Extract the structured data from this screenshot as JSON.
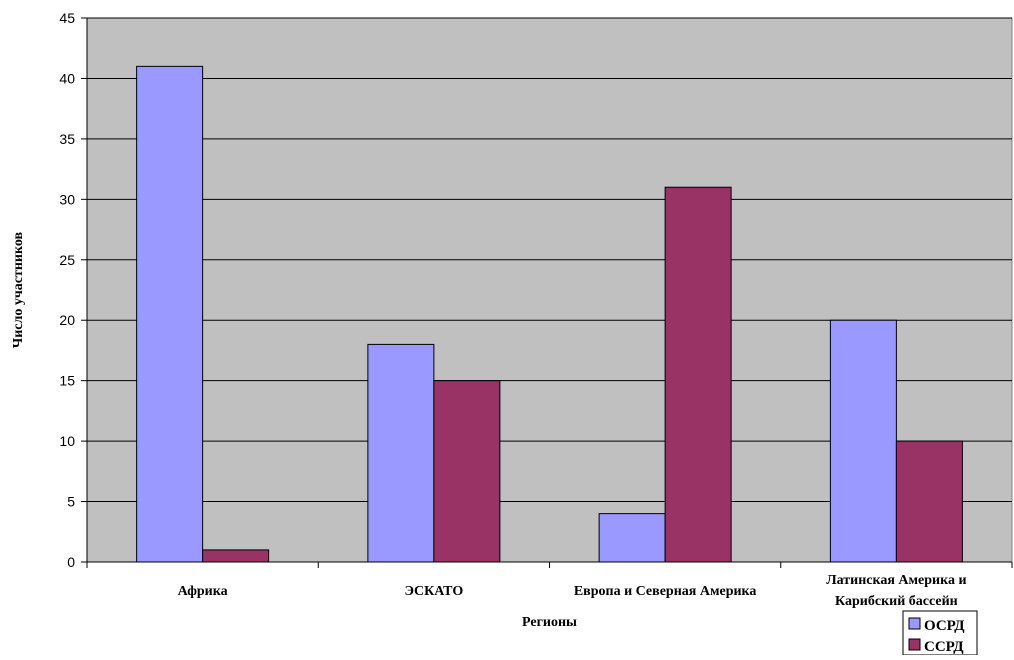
{
  "chart_data": {
    "type": "bar",
    "categories": [
      "Африка",
      "ЭСКАТО",
      "Европа и Северная Америка",
      "Латинская Америка и Карибский бассейн"
    ],
    "category_lines": [
      [
        "Африка"
      ],
      [
        "ЭСКАТО"
      ],
      [
        "Европа и Северная Америка"
      ],
      [
        "Латинская Америка и",
        "Карибский бассейн"
      ]
    ],
    "series": [
      {
        "name": "ОСРД",
        "values": [
          41,
          18,
          4,
          20
        ],
        "color": "#9999ff"
      },
      {
        "name": "ССРД",
        "values": [
          1,
          15,
          31,
          10
        ],
        "color": "#993366"
      }
    ],
    "xlabel": "Регионы",
    "ylabel": "Число участников",
    "ylim": [
      0,
      45
    ],
    "yticks": [
      0,
      5,
      10,
      15,
      20,
      25,
      30,
      35,
      40,
      45
    ],
    "grid": true,
    "plot_background": "#c0c0c0",
    "legend": "bottom-right"
  }
}
